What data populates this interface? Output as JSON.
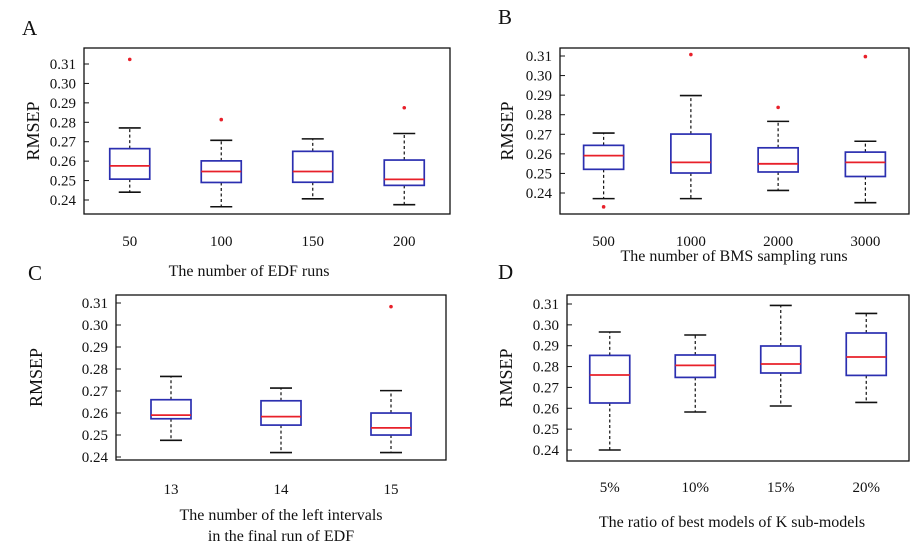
{
  "colors": {
    "box": "#2b2fb0",
    "median": "#e8202a",
    "whisker": "#111111",
    "outlier": "#e8202a",
    "axis": "#111111"
  },
  "chart_data": [
    {
      "type": "box",
      "panel_label": "A",
      "ylabel": "RMSEP",
      "xlabel_lines": [
        "The number of EDF runs"
      ],
      "ylim": [
        0.235,
        0.315
      ],
      "yticks": [
        "0.24",
        "0.25",
        "0.26",
        "0.27",
        "0.28",
        "0.29",
        "0.30",
        "0.31"
      ],
      "categories": [
        "50",
        "100",
        "150",
        "200"
      ],
      "boxes": [
        {
          "min": 0.2455,
          "q1": 0.2518,
          "median": 0.2582,
          "q3": 0.2665,
          "max": 0.2765,
          "outliers": [
            0.3095
          ]
        },
        {
          "min": 0.2385,
          "q1": 0.2502,
          "median": 0.2555,
          "q3": 0.2606,
          "max": 0.2705,
          "outliers": [
            0.2805
          ]
        },
        {
          "min": 0.2423,
          "q1": 0.2503,
          "median": 0.2555,
          "q3": 0.2652,
          "max": 0.2712,
          "outliers": []
        },
        {
          "min": 0.2395,
          "q1": 0.2488,
          "median": 0.2517,
          "q3": 0.261,
          "max": 0.2738,
          "outliers": [
            0.2862
          ]
        }
      ]
    },
    {
      "type": "box",
      "panel_label": "B",
      "ylabel": "RMSEP",
      "xlabel_lines": [
        "The number of BMS sampling runs"
      ],
      "ylim": [
        0.232,
        0.313
      ],
      "yticks": [
        "0.24",
        "0.25",
        "0.26",
        "0.27",
        "0.28",
        "0.29",
        "0.30",
        "0.31"
      ],
      "categories": [
        "500",
        "1000",
        "2000",
        "3000"
      ],
      "boxes": [
        {
          "min": 0.2395,
          "q1": 0.2538,
          "median": 0.2605,
          "q3": 0.2655,
          "max": 0.2715,
          "outliers": [
            0.2355
          ]
        },
        {
          "min": 0.2395,
          "q1": 0.252,
          "median": 0.2572,
          "q3": 0.271,
          "max": 0.2898,
          "outliers": [
            0.3098
          ]
        },
        {
          "min": 0.2435,
          "q1": 0.2525,
          "median": 0.2565,
          "q3": 0.2643,
          "max": 0.2772,
          "outliers": [
            0.284
          ]
        },
        {
          "min": 0.2375,
          "q1": 0.2503,
          "median": 0.2572,
          "q3": 0.2622,
          "max": 0.2675,
          "outliers": [
            0.3088
          ]
        }
      ]
    },
    {
      "type": "box",
      "panel_label": "C",
      "ylabel": "RMSEP",
      "xlabel_lines": [
        "The number of the left intervals",
        "in the final run of EDF"
      ],
      "ylim": [
        0.235,
        0.313
      ],
      "yticks": [
        "0.24",
        "0.25",
        "0.26",
        "0.27",
        "0.28",
        "0.29",
        "0.30",
        "0.31"
      ],
      "categories": [
        "13",
        "14",
        "15"
      ],
      "boxes": [
        {
          "min": 0.2443,
          "q1": 0.2545,
          "median": 0.2562,
          "q3": 0.2635,
          "max": 0.2745,
          "outliers": []
        },
        {
          "min": 0.2385,
          "q1": 0.2515,
          "median": 0.2555,
          "q3": 0.263,
          "max": 0.269,
          "outliers": []
        },
        {
          "min": 0.2385,
          "q1": 0.2468,
          "median": 0.2502,
          "q3": 0.2572,
          "max": 0.2678,
          "outliers": [
            0.3075
          ]
        }
      ]
    },
    {
      "type": "box",
      "panel_label": "D",
      "ylabel": "RMSEP",
      "xlabel_lines": [
        "The ratio of best models of K sub-models"
      ],
      "ylim": [
        0.23,
        0.313
      ],
      "yticks": [
        "0.24",
        "0.25",
        "0.26",
        "0.27",
        "0.28",
        "0.29",
        "0.30",
        "0.31"
      ],
      "categories": [
        "5%",
        "10%",
        "15%",
        "20%"
      ],
      "boxes": [
        {
          "min": 0.2355,
          "q1": 0.259,
          "median": 0.273,
          "q3": 0.2828,
          "max": 0.2945,
          "outliers": []
        },
        {
          "min": 0.2545,
          "q1": 0.2718,
          "median": 0.2778,
          "q3": 0.283,
          "max": 0.293,
          "outliers": []
        },
        {
          "min": 0.2575,
          "q1": 0.274,
          "median": 0.2785,
          "q3": 0.2875,
          "max": 0.3078,
          "outliers": []
        },
        {
          "min": 0.2593,
          "q1": 0.2728,
          "median": 0.282,
          "q3": 0.294,
          "max": 0.3038,
          "outliers": []
        }
      ]
    }
  ]
}
